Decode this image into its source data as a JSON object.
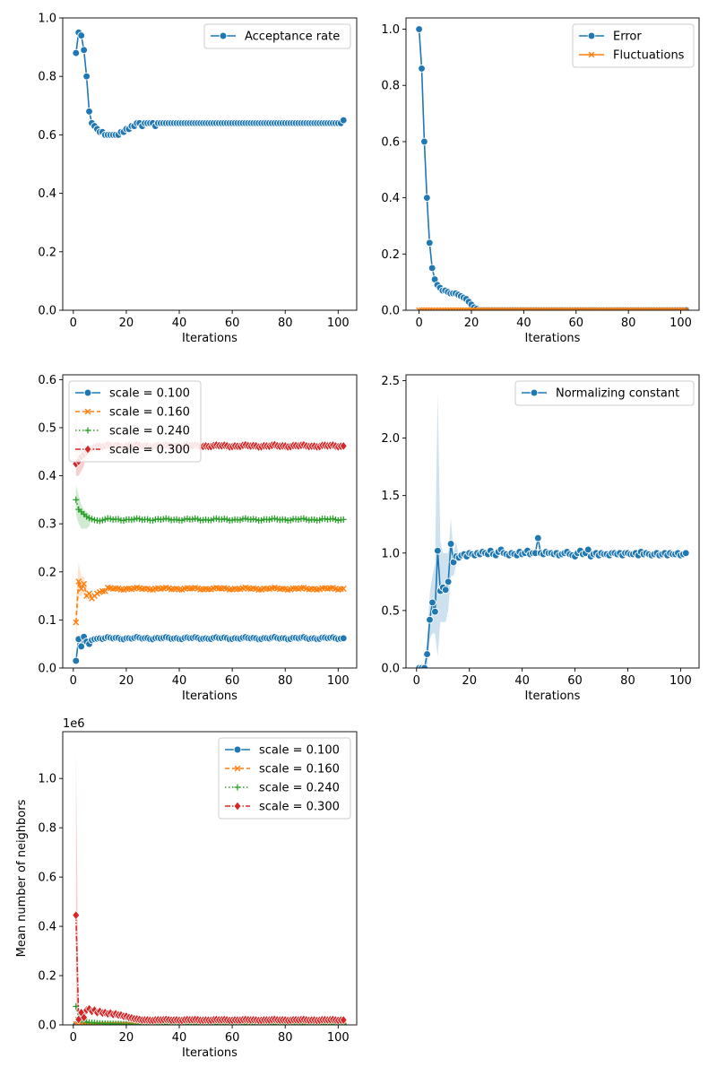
{
  "figure": {
    "x_label": "Iterations"
  },
  "chart_data": [
    {
      "id": "acceptance",
      "type": "line",
      "xlabel": "Iterations",
      "ylabel": "",
      "xlim": [
        -4,
        107
      ],
      "ylim": [
        0,
        1.0
      ],
      "xticks": [
        0,
        20,
        40,
        60,
        80,
        100
      ],
      "yticks": [
        0.0,
        0.2,
        0.4,
        0.6,
        0.8,
        1.0
      ],
      "ytick_labels": [
        "0.0",
        "0.2",
        "0.4",
        "0.6",
        "0.8",
        "1.0"
      ],
      "legend_position": "top-right",
      "series": [
        {
          "name": "Acceptance rate",
          "color": "#1f77b4",
          "marker": "circle",
          "linestyle": "solid",
          "x_start": 1,
          "values": [
            0.88,
            0.95,
            0.94,
            0.89,
            0.8,
            0.68,
            0.64,
            0.63,
            0.62,
            0.61,
            0.61,
            0.6,
            0.6,
            0.6,
            0.6,
            0.6,
            0.6,
            0.61,
            0.61,
            0.62,
            0.62,
            0.63,
            0.63,
            0.64,
            0.64,
            0.63,
            0.64,
            0.64,
            0.64,
            0.64,
            0.63,
            0.64,
            0.64,
            0.64,
            0.64,
            0.64,
            0.64,
            0.64,
            0.64,
            0.64,
            0.64,
            0.64,
            0.64,
            0.64,
            0.64,
            0.64,
            0.64,
            0.64,
            0.64,
            0.64,
            0.64,
            0.64,
            0.64,
            0.64,
            0.64,
            0.64,
            0.64,
            0.64,
            0.64,
            0.64,
            0.64,
            0.64,
            0.64,
            0.64,
            0.64,
            0.64,
            0.64,
            0.64,
            0.64,
            0.64,
            0.64,
            0.64,
            0.64,
            0.64,
            0.64,
            0.64,
            0.64,
            0.64,
            0.64,
            0.64,
            0.64,
            0.64,
            0.64,
            0.64,
            0.64,
            0.64,
            0.64,
            0.64,
            0.64,
            0.64,
            0.64,
            0.64,
            0.64,
            0.64,
            0.64,
            0.64,
            0.64,
            0.64,
            0.64,
            0.64,
            0.64,
            0.65
          ]
        }
      ]
    },
    {
      "id": "error",
      "type": "line",
      "xlabel": "Iterations",
      "ylabel": "",
      "xlim": [
        -5,
        107
      ],
      "ylim": [
        0,
        1.04
      ],
      "xticks": [
        0,
        20,
        40,
        60,
        80,
        100
      ],
      "yticks": [
        0.0,
        0.2,
        0.4,
        0.6,
        0.8,
        1.0
      ],
      "ytick_labels": [
        "0.0",
        "0.2",
        "0.4",
        "0.6",
        "0.8",
        "1.0"
      ],
      "legend_position": "top-right",
      "series": [
        {
          "name": "Error",
          "color": "#1f77b4",
          "marker": "circle",
          "linestyle": "solid",
          "x_start": 0,
          "values": [
            1.0,
            0.86,
            0.6,
            0.4,
            0.24,
            0.15,
            0.11,
            0.09,
            0.08,
            0.07,
            0.07,
            0.065,
            0.06,
            0.06,
            0.06,
            0.055,
            0.05,
            0.045,
            0.04,
            0.03,
            0.02,
            0.01,
            0.005,
            0,
            0,
            0,
            0,
            0,
            0,
            0,
            0,
            0,
            0,
            0,
            0,
            0,
            0,
            0,
            0,
            0,
            0,
            0,
            0,
            0,
            0,
            0,
            0,
            0,
            0,
            0,
            0,
            0,
            0,
            0,
            0,
            0,
            0,
            0,
            0,
            0,
            0,
            0,
            0,
            0,
            0,
            0,
            0,
            0,
            0,
            0,
            0,
            0,
            0,
            0,
            0,
            0,
            0,
            0,
            0,
            0,
            0,
            0,
            0,
            0,
            0,
            0,
            0,
            0,
            0,
            0,
            0,
            0,
            0,
            0,
            0,
            0,
            0,
            0,
            0,
            0,
            0,
            0,
            0
          ]
        },
        {
          "name": "Fluctuations",
          "color": "#ff7f0e",
          "marker": "x",
          "linestyle": "solid",
          "x_start": 0,
          "values": [
            0,
            0,
            0,
            0,
            0,
            0,
            0,
            0,
            0,
            0,
            0,
            0,
            0,
            0,
            0,
            0,
            0,
            0,
            0,
            0,
            0,
            0,
            0,
            0,
            0,
            0,
            0,
            0,
            0,
            0,
            0,
            0,
            0,
            0,
            0,
            0,
            0,
            0,
            0,
            0,
            0,
            0,
            0,
            0,
            0,
            0,
            0,
            0,
            0,
            0,
            0,
            0,
            0,
            0,
            0,
            0,
            0,
            0,
            0,
            0,
            0,
            0,
            0,
            0,
            0,
            0,
            0,
            0,
            0,
            0,
            0,
            0,
            0,
            0,
            0,
            0,
            0,
            0,
            0,
            0,
            0,
            0,
            0,
            0,
            0,
            0,
            0,
            0,
            0,
            0,
            0,
            0,
            0,
            0,
            0,
            0,
            0,
            0,
            0,
            0,
            0,
            0,
            0
          ]
        }
      ]
    },
    {
      "id": "scale",
      "type": "line",
      "xlabel": "Iterations",
      "ylabel": "",
      "xlim": [
        -4,
        107
      ],
      "ylim": [
        0,
        0.61
      ],
      "xticks": [
        0,
        20,
        40,
        60,
        80,
        100
      ],
      "yticks": [
        0.0,
        0.1,
        0.2,
        0.3,
        0.4,
        0.5,
        0.6
      ],
      "ytick_labels": [
        "0.0",
        "0.1",
        "0.2",
        "0.3",
        "0.4",
        "0.5",
        "0.6"
      ],
      "legend_position": "top-left",
      "series": [
        {
          "name": "scale = 0.100",
          "color": "#1f77b4",
          "marker": "circle",
          "linestyle": "solid",
          "x_start": 1,
          "steady": 0.062,
          "early": [
            0.015,
            0.06,
            0.045,
            0.065,
            0.055,
            0.05,
            0.058,
            0.06,
            0.061
          ],
          "band": []
        },
        {
          "name": "scale = 0.160",
          "color": "#ff7f0e",
          "marker": "x",
          "linestyle": "dashed",
          "x_start": 1,
          "steady": 0.165,
          "early": [
            0.095,
            0.18,
            0.165,
            0.175,
            0.15,
            0.155,
            0.145,
            0.15,
            0.155,
            0.158,
            0.16,
            0.16
          ],
          "band": [
            [
              0.05,
              0.14
            ],
            [
              0.15,
              0.22
            ],
            [
              0.15,
              0.19
            ],
            [
              0.16,
              0.19
            ],
            [
              0.14,
              0.165
            ]
          ]
        },
        {
          "name": "scale = 0.240",
          "color": "#2ca02c",
          "marker": "plus",
          "linestyle": "dotted",
          "x_start": 1,
          "steady": 0.309,
          "early": [
            0.35,
            0.33,
            0.325,
            0.32,
            0.315,
            0.312,
            0.31,
            0.308,
            0.307,
            0.306
          ],
          "band": [
            [
              0.32,
              0.38
            ],
            [
              0.3,
              0.36
            ],
            [
              0.29,
              0.34
            ],
            [
              0.29,
              0.33
            ],
            [
              0.29,
              0.325
            ],
            [
              0.295,
              0.32
            ]
          ]
        },
        {
          "name": "scale = 0.300",
          "color": "#d62728",
          "marker": "diamond",
          "linestyle": "dashdot",
          "x_start": 1,
          "steady": 0.462,
          "early": [
            0.425,
            0.43,
            0.44,
            0.445,
            0.45,
            0.455,
            0.458,
            0.46
          ],
          "band": [
            [
              0.4,
              0.53
            ],
            [
              0.4,
              0.48
            ],
            [
              0.41,
              0.47
            ],
            [
              0.42,
              0.47
            ]
          ]
        }
      ]
    },
    {
      "id": "normalizing",
      "type": "line",
      "xlabel": "Iterations",
      "ylabel": "",
      "xlim": [
        -4,
        107
      ],
      "ylim": [
        0,
        2.55
      ],
      "xticks": [
        0,
        20,
        40,
        60,
        80,
        100
      ],
      "yticks": [
        0.0,
        0.5,
        1.0,
        1.5,
        2.0,
        2.5
      ],
      "ytick_labels": [
        "0.0",
        "0.5",
        "1.0",
        "1.5",
        "2.0",
        "2.5"
      ],
      "legend_position": "top-right",
      "series": [
        {
          "name": "Normalizing constant",
          "color": "#1f77b4",
          "marker": "circle",
          "linestyle": "solid",
          "x_start": 1,
          "values": [
            0.0,
            0.0,
            0.0,
            0.12,
            0.42,
            0.57,
            0.49,
            1.02,
            0.67,
            0.7,
            0.68,
            0.75,
            1.08,
            0.92,
            0.97,
            0.96,
            0.98,
            0.99,
            0.97,
            1.0,
            0.99,
            0.98,
            1.0,
            0.99,
            1.01,
            1.0,
            0.99,
            1.02,
            0.99,
            0.98,
            1.01,
            1.03,
            1.0,
            0.99,
            0.98,
            1.0,
            0.99,
            0.98,
            1.01,
            0.99,
            1.0,
            1.02,
            0.99,
            1.0,
            1.0,
            1.13,
            1.0,
            0.99,
            1.01,
            1.0,
            1.0,
            0.99,
            1.0,
            0.98,
            0.99,
            1.0,
            1.01,
            0.99,
            0.98,
            0.97,
            1.0,
            1.02,
            0.99,
            1.0,
            1.03,
            0.97,
            0.99,
            1.0,
            0.98,
            1.0,
            0.99,
            0.99,
            0.98,
            1.0,
            1.0,
            0.99,
            1.0,
            0.98,
            1.0,
            1.0,
            0.99,
            0.99,
            1.0,
            0.98,
            1.01,
            0.99,
            1.0,
            0.99,
            0.98,
            0.99,
            1.0,
            0.98,
            0.99,
            1.0,
            0.98,
            1.0,
            0.99,
            0.99,
            1.0,
            0.98,
            0.99,
            1.0
          ],
          "band": [
            [
              0,
              0
            ],
            [
              0,
              0
            ],
            [
              0,
              0
            ],
            [
              0,
              0.25
            ],
            [
              0.25,
              0.65
            ],
            [
              0.3,
              0.8
            ],
            [
              0.3,
              0.9
            ],
            [
              0.1,
              2.4
            ],
            [
              0.4,
              1.1
            ],
            [
              0.4,
              1.0
            ],
            [
              0.4,
              1.0
            ],
            [
              0.5,
              1.0
            ],
            [
              0.8,
              1.3
            ],
            [
              0.8,
              1.0
            ],
            [
              0.9,
              1.1
            ]
          ]
        }
      ]
    },
    {
      "id": "neighbors",
      "type": "line",
      "xlabel": "Iterations",
      "ylabel": "Mean number of neighbors",
      "offset_label": "1e6",
      "xlim": [
        -4,
        107
      ],
      "ylim": [
        0,
        1.19
      ],
      "xticks": [
        0,
        20,
        40,
        60,
        80,
        100
      ],
      "yticks": [
        0.0,
        0.2,
        0.4,
        0.6,
        0.8,
        1.0
      ],
      "ytick_labels": [
        "0.0",
        "0.2",
        "0.4",
        "0.6",
        "0.8",
        "1.0"
      ],
      "legend_position": "top-right",
      "series": [
        {
          "name": "scale = 0.100",
          "color": "#1f77b4",
          "marker": "circle",
          "linestyle": "solid",
          "x_start": 1,
          "steady": 0.0005,
          "early": [
            0.001
          ],
          "band": []
        },
        {
          "name": "scale = 0.160",
          "color": "#ff7f0e",
          "marker": "x",
          "linestyle": "dashed",
          "x_start": 1,
          "steady": 0.001,
          "early": [
            0.003
          ],
          "band": []
        },
        {
          "name": "scale = 0.240",
          "color": "#2ca02c",
          "marker": "plus",
          "linestyle": "dotted",
          "x_start": 1,
          "steady": 0.002,
          "early": [
            0.075,
            0.03,
            0.02,
            0.015,
            0.012,
            0.01,
            0.009,
            0.008,
            0.007,
            0.006,
            0.006,
            0.005,
            0.005,
            0.005,
            0.004,
            0.004,
            0.004,
            0.003,
            0.003,
            0.003
          ],
          "band": []
        },
        {
          "name": "scale = 0.300",
          "color": "#d62728",
          "marker": "diamond",
          "linestyle": "dashdot",
          "x_start": 1,
          "steady": 0.02,
          "early": [
            0.445,
            0.022,
            0.05,
            0.03,
            0.06,
            0.065,
            0.055,
            0.06,
            0.05,
            0.055,
            0.048,
            0.05,
            0.045,
            0.048,
            0.042,
            0.045,
            0.04,
            0.04,
            0.035,
            0.035,
            0.03,
            0.028,
            0.025,
            0.024,
            0.022
          ],
          "band": [
            [
              0.1,
              1.12
            ],
            [
              0.01,
              0.04
            ]
          ]
        }
      ]
    }
  ]
}
